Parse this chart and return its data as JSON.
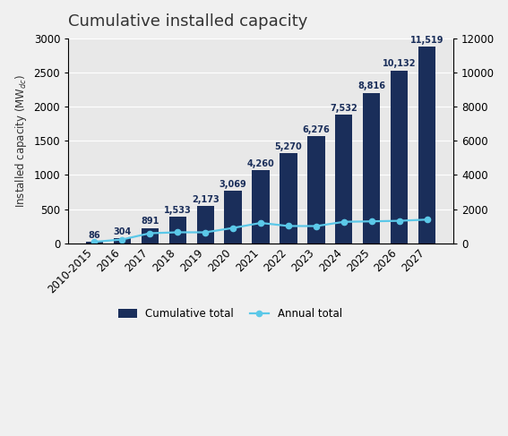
{
  "categories": [
    "2010-2015",
    "2016",
    "2017",
    "2018",
    "2019",
    "2020",
    "2021",
    "2022",
    "2023",
    "2024",
    "2025",
    "2026",
    "2027"
  ],
  "cumulative": [
    86,
    304,
    891,
    1533,
    2173,
    3069,
    4260,
    5270,
    6276,
    7532,
    8816,
    10132,
    11519
  ],
  "annual": [
    86,
    218,
    587,
    642,
    640,
    896,
    1191,
    1010,
    1006,
    1256,
    1284,
    1316,
    1387
  ],
  "bar_color": "#1a2e5a",
  "line_color": "#5bc8e8",
  "title": "Cumulative installed capacity",
  "ylim_right": [
    0,
    12000
  ],
  "ylim_left": [
    0,
    3000
  ],
  "yticks_left": [
    0,
    500,
    1000,
    1500,
    2000,
    2500,
    3000
  ],
  "yticks_right": [
    0,
    2000,
    4000,
    6000,
    8000,
    10000,
    12000
  ],
  "plot_bg_color": "#e8e8e8",
  "fig_bg_color": "#f0f0f0",
  "legend_cumulative": "Cumulative total",
  "legend_annual": "Annual total",
  "title_fontsize": 13,
  "axis_fontsize": 8.5,
  "label_fontsize": 7
}
